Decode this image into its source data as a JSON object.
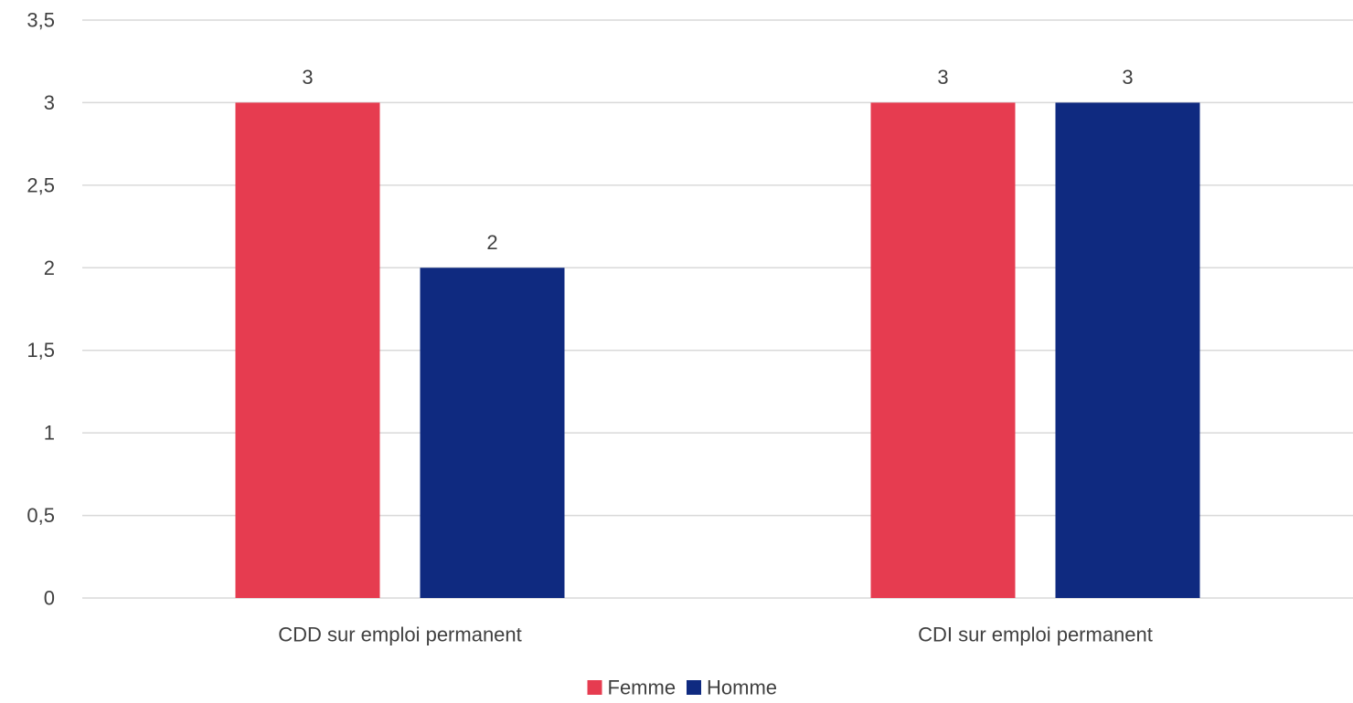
{
  "chart_data": {
    "type": "bar",
    "title": "",
    "xlabel": "",
    "ylabel": "",
    "categories": [
      "CDD sur emploi permanent",
      "CDI sur emploi permanent"
    ],
    "series": [
      {
        "name": "Femme",
        "values": [
          3,
          3
        ],
        "color": "#e63c50"
      },
      {
        "name": "Homme",
        "values": [
          2,
          3
        ],
        "color": "#0f2a80"
      }
    ],
    "ylim": [
      0,
      3.5
    ],
    "yticks": [
      "0",
      "0,5",
      "1",
      "1,5",
      "2",
      "2,5",
      "3",
      "3,5"
    ],
    "grid": true,
    "legend_position": "bottom",
    "data_labels": true
  }
}
